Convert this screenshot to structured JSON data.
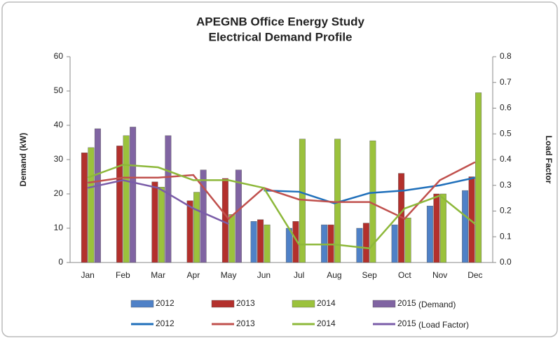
{
  "chart_data": {
    "type": "bar",
    "title": [
      "APEGNB Office Energy Study",
      "Electrical Demand Profile"
    ],
    "y_label": "Demand (kW)",
    "y2_label": "Load Factor",
    "categories": [
      "Jan",
      "Feb",
      "Mar",
      "Apr",
      "May",
      "Jun",
      "Jul",
      "Aug",
      "Sep",
      "Oct",
      "Nov",
      "Dec"
    ],
    "ylim": [
      0,
      60
    ],
    "yticks": [
      0,
      10,
      20,
      30,
      40,
      50,
      60
    ],
    "y2lim": [
      0,
      0.8
    ],
    "y2ticks": [
      {
        "value": 0,
        "label": "0.0"
      },
      {
        "value": 0.1,
        "label": "0.1"
      },
      {
        "value": 0.2,
        "label": "0.2"
      },
      {
        "value": 0.3,
        "label": "0.3"
      },
      {
        "value": 0.4,
        "label": "0.4"
      },
      {
        "value": 0.5,
        "label": "0.5"
      },
      {
        "value": 0.6,
        "label": "0.6"
      },
      {
        "value": 0.7,
        "label": "0.7"
      },
      {
        "value": 0.8,
        "label": "0.8"
      }
    ],
    "legend_groups": [
      "(Demand)",
      "(Load Factor)"
    ],
    "series": [
      {
        "name": "2012",
        "type": "bar",
        "color": "#4f81c7",
        "values": [
          null,
          null,
          null,
          null,
          null,
          12,
          10,
          11,
          10,
          11,
          16.5,
          21
        ]
      },
      {
        "name": "2013",
        "type": "bar",
        "color": "#b3302c",
        "values": [
          32,
          34,
          23.5,
          18,
          24.5,
          12.5,
          12,
          11,
          11.5,
          26,
          20,
          25
        ]
      },
      {
        "name": "2014",
        "type": "bar",
        "color": "#9bc23c",
        "values": [
          33.5,
          37,
          22,
          20.5,
          14,
          11,
          36,
          36,
          35.5,
          13,
          20,
          49.5
        ]
      },
      {
        "name": "2015",
        "type": "bar",
        "color": "#8064a2",
        "values": [
          39,
          39.5,
          37,
          27,
          27,
          null,
          null,
          null,
          null,
          null,
          null,
          null
        ]
      },
      {
        "name": "2012",
        "type": "line",
        "axis": "y2",
        "color": "#1f6fba",
        "values": [
          null,
          null,
          null,
          null,
          null,
          0.28,
          0.275,
          0.23,
          0.27,
          0.28,
          0.3,
          0.33
        ]
      },
      {
        "name": "2013",
        "type": "line",
        "axis": "y2",
        "color": "#c0504d",
        "values": [
          0.31,
          0.33,
          0.33,
          0.34,
          0.17,
          0.29,
          0.245,
          0.235,
          0.235,
          0.17,
          0.32,
          0.39
        ]
      },
      {
        "name": "2014",
        "type": "line",
        "axis": "y2",
        "color": "#8db83a",
        "values": [
          0.33,
          0.38,
          0.37,
          0.32,
          0.32,
          0.29,
          0.07,
          0.07,
          0.055,
          0.21,
          0.26,
          0.15
        ]
      },
      {
        "name": "2015",
        "type": "line",
        "axis": "y2",
        "color": "#7a5ca8",
        "values": [
          0.29,
          0.32,
          0.29,
          0.21,
          0.15,
          null,
          null,
          null,
          null,
          null,
          null,
          null
        ]
      }
    ]
  }
}
